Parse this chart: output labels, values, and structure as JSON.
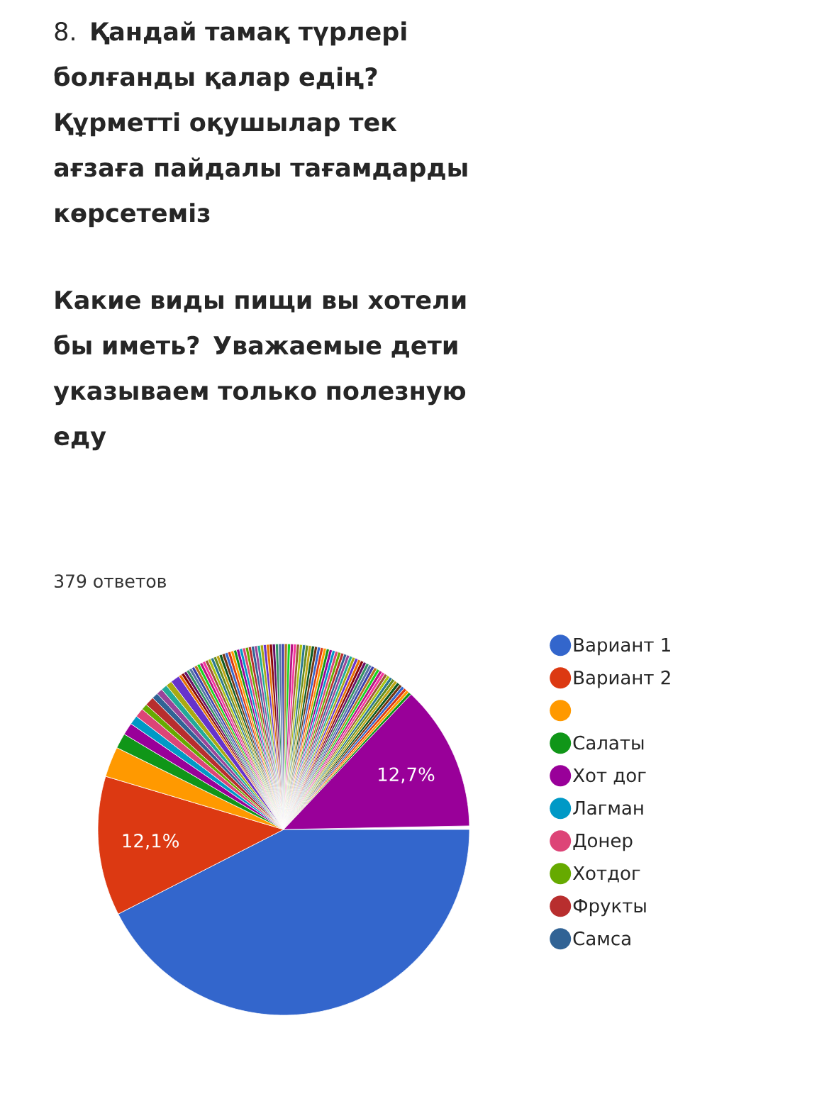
{
  "chart_data": {
    "type": "pie",
    "title": "8. **Қандай тамақ түрлері болғанды қалар едің? Құрметті оқушылар тек ағзаға пайдалы тағамдарды көрсетеміз**",
    "subtitle": "Какие виды пищи вы хотели бы иметь? Уважаемые дети указываем только полезную еду",
    "annotations": [
      "379 ответов"
    ],
    "legend": "right",
    "categories": [
      "Вариант 1",
      "Вариант 2",
      null,
      "Салаты",
      "Хот дог",
      "Лагман",
      "Донер",
      "Хотдог",
      "Фрукты",
      "Самса",
      null,
      null,
      null,
      null,
      null,
      null,
      null,
      null,
      null,
      null,
      null,
      null,
      null,
      null,
      null,
      null,
      null,
      null,
      null,
      null,
      null,
      null,
      null,
      null,
      null,
      null,
      null,
      null,
      null,
      null,
      null,
      null,
      null,
      null,
      null,
      null,
      null,
      null,
      null,
      null,
      null,
      null,
      null,
      null,
      null,
      null,
      null,
      null,
      null,
      null,
      null,
      null,
      null,
      null,
      null,
      null,
      null,
      null,
      null,
      null,
      null,
      null,
      null,
      null,
      null,
      null,
      null,
      null,
      null,
      null,
      null,
      null,
      null,
      null,
      null,
      null,
      null,
      null,
      null,
      null,
      null,
      null,
      null,
      null,
      null,
      null,
      null,
      null
    ],
    "values": [
      42.48,
      12.14,
      2.64,
      1.32,
      1.06,
      0.79,
      0.79,
      0.53,
      0.79,
      0.53,
      0.53,
      0.53,
      0.53,
      0.79,
      0.26,
      0.26,
      0.26,
      0.26,
      0.26,
      0.26,
      0.26,
      0.26,
      0.26,
      0.26,
      0.26,
      0.26,
      0.26,
      0.26,
      0.26,
      0.26,
      0.26,
      0.26,
      0.26,
      0.26,
      0.26,
      0.26,
      0.26,
      0.26,
      0.26,
      0.26,
      0.26,
      0.26,
      0.26,
      0.26,
      0.26,
      0.26,
      0.26,
      0.26,
      0.26,
      0.26,
      0.26,
      0.26,
      0.26,
      0.26,
      0.26,
      0.26,
      0.26,
      0.26,
      0.26,
      0.26,
      0.26,
      0.26,
      0.26,
      0.26,
      0.26,
      0.26,
      0.26,
      0.26,
      0.26,
      0.26,
      0.26,
      0.26,
      0.26,
      0.26,
      0.26,
      0.26,
      0.26,
      0.26,
      0.26,
      0.26,
      0.26,
      0.26,
      0.26,
      0.26,
      0.26,
      0.26,
      0.26,
      0.26,
      0.26,
      0.26,
      0.26,
      0.26,
      0.26,
      0.26,
      0.26,
      0.26,
      0.26,
      12.66
    ],
    "value_labels": [
      null,
      "12,1%",
      null,
      null,
      null,
      null,
      null,
      null,
      null,
      null,
      null,
      null,
      null,
      null,
      null,
      null,
      null,
      null,
      null,
      null,
      null,
      null,
      null,
      null,
      null,
      null,
      null,
      null,
      null,
      null,
      null,
      null,
      null,
      null,
      null,
      null,
      null,
      null,
      null,
      null,
      null,
      null,
      null,
      null,
      null,
      null,
      null,
      null,
      null,
      null,
      null,
      null,
      null,
      null,
      null,
      null,
      null,
      null,
      null,
      null,
      null,
      null,
      null,
      null,
      null,
      null,
      null,
      null,
      null,
      null,
      null,
      null,
      null,
      null,
      null,
      null,
      null,
      null,
      null,
      null,
      null,
      null,
      null,
      null,
      null,
      null,
      null,
      null,
      null,
      null,
      null,
      null,
      null,
      null,
      null,
      null,
      null,
      "12,7%"
    ],
    "colors": [
      "#3366cc",
      "#dc3912",
      "#ff9900",
      "#109618",
      "#990099",
      "#0099c6",
      "#dd4477",
      "#66aa00",
      "#b82e2e",
      "#316395",
      "#994499",
      "#22aa99",
      "#aaaa11",
      "#6633cc",
      "#e67300",
      "#8b0707",
      "#651067",
      "#329262",
      "#5574a6",
      "#3b3eac",
      "#b77322",
      "#16d620",
      "#b91383",
      "#f4359e",
      "#9c5935",
      "#a9c413",
      "#2a778d",
      "#668d1c",
      "#bea413",
      "#0c5922",
      "#743411",
      "#3366cc",
      "#dc3912",
      "#ff9900",
      "#109618",
      "#990099",
      "#0099c6",
      "#dd4477",
      "#66aa00",
      "#b82e2e",
      "#316395",
      "#994499",
      "#22aa99",
      "#aaaa11",
      "#6633cc",
      "#e67300",
      "#8b0707",
      "#651067",
      "#329262",
      "#5574a6",
      "#3b3eac",
      "#b77322",
      "#16d620",
      "#b91383",
      "#f4359e",
      "#9c5935",
      "#a9c413",
      "#2a778d",
      "#668d1c",
      "#bea413",
      "#0c5922",
      "#743411",
      "#3366cc",
      "#dc3912",
      "#ff9900",
      "#109618",
      "#990099",
      "#0099c6",
      "#dd4477",
      "#66aa00",
      "#b82e2e",
      "#316395",
      "#994499",
      "#22aa99",
      "#aaaa11",
      "#6633cc",
      "#e67300",
      "#8b0707",
      "#651067",
      "#329262",
      "#5574a6",
      "#3b3eac",
      "#b77322",
      "#16d620",
      "#b91383",
      "#f4359e",
      "#9c5935",
      "#a9c413",
      "#2a778d",
      "#668d1c",
      "#bea413",
      "#0c5922",
      "#743411",
      "#3366cc",
      "#dc3912",
      "#ff9900",
      "#109618",
      "#990099"
    ]
  }
}
